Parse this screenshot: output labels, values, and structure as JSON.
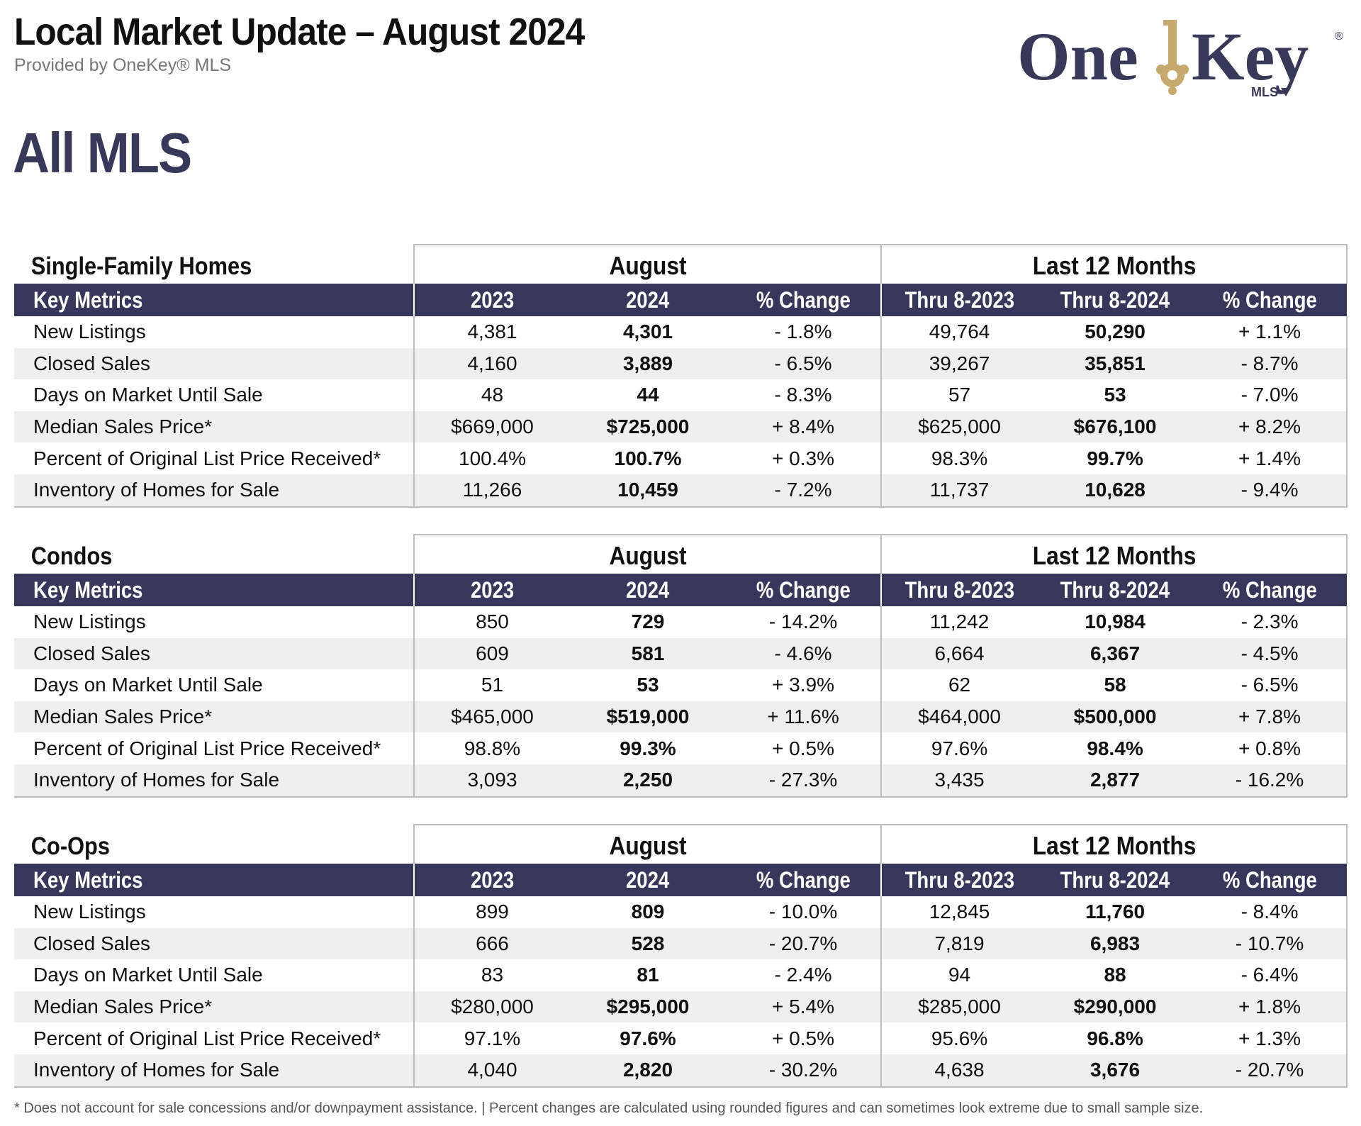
{
  "header": {
    "title": "Local Market Update – August 2024",
    "subtitle": "Provided by OneKey® MLS",
    "region": "All MLS",
    "logo_text_one": "One",
    "logo_text_key": "Key",
    "logo_text_mls": "MLS",
    "logo_registered": "®"
  },
  "colors": {
    "header_bar": "#37375b",
    "region_title": "#383858",
    "logo_text": "#383858",
    "logo_key_gold": "#c6a96c",
    "alt_row": "#efefef"
  },
  "columns": {
    "key_metrics": "Key Metrics",
    "group_month": "August",
    "group_year": "Last 12 Months",
    "y2023": "2023",
    "y2024": "2024",
    "pct": "% Change",
    "thru2023": "Thru 8-2023",
    "thru2024": "Thru 8-2024"
  },
  "sections": [
    {
      "title": "Single-Family Homes",
      "rows": [
        {
          "metric": "New Listings",
          "m2023": "4,381",
          "m2024": "4,301",
          "mpct": "- 1.8%",
          "y2023": "49,764",
          "y2024": "50,290",
          "ypct": "+ 1.1%"
        },
        {
          "metric": "Closed Sales",
          "m2023": "4,160",
          "m2024": "3,889",
          "mpct": "- 6.5%",
          "y2023": "39,267",
          "y2024": "35,851",
          "ypct": "- 8.7%"
        },
        {
          "metric": "Days on Market Until Sale",
          "m2023": "48",
          "m2024": "44",
          "mpct": "- 8.3%",
          "y2023": "57",
          "y2024": "53",
          "ypct": "- 7.0%"
        },
        {
          "metric": "Median Sales Price*",
          "m2023": "$669,000",
          "m2024": "$725,000",
          "mpct": "+ 8.4%",
          "y2023": "$625,000",
          "y2024": "$676,100",
          "ypct": "+ 8.2%"
        },
        {
          "metric": "Percent of Original List Price Received*",
          "m2023": "100.4%",
          "m2024": "100.7%",
          "mpct": "+ 0.3%",
          "y2023": "98.3%",
          "y2024": "99.7%",
          "ypct": "+ 1.4%"
        },
        {
          "metric": "Inventory of Homes for Sale",
          "m2023": "11,266",
          "m2024": "10,459",
          "mpct": "- 7.2%",
          "y2023": "11,737",
          "y2024": "10,628",
          "ypct": "- 9.4%"
        }
      ]
    },
    {
      "title": "Condos",
      "rows": [
        {
          "metric": "New Listings",
          "m2023": "850",
          "m2024": "729",
          "mpct": "- 14.2%",
          "y2023": "11,242",
          "y2024": "10,984",
          "ypct": "- 2.3%"
        },
        {
          "metric": "Closed Sales",
          "m2023": "609",
          "m2024": "581",
          "mpct": "- 4.6%",
          "y2023": "6,664",
          "y2024": "6,367",
          "ypct": "- 4.5%"
        },
        {
          "metric": "Days on Market Until Sale",
          "m2023": "51",
          "m2024": "53",
          "mpct": "+ 3.9%",
          "y2023": "62",
          "y2024": "58",
          "ypct": "- 6.5%"
        },
        {
          "metric": "Median Sales Price*",
          "m2023": "$465,000",
          "m2024": "$519,000",
          "mpct": "+ 11.6%",
          "y2023": "$464,000",
          "y2024": "$500,000",
          "ypct": "+ 7.8%"
        },
        {
          "metric": "Percent of Original List Price Received*",
          "m2023": "98.8%",
          "m2024": "99.3%",
          "mpct": "+ 0.5%",
          "y2023": "97.6%",
          "y2024": "98.4%",
          "ypct": "+ 0.8%"
        },
        {
          "metric": "Inventory of Homes for Sale",
          "m2023": "3,093",
          "m2024": "2,250",
          "mpct": "- 27.3%",
          "y2023": "3,435",
          "y2024": "2,877",
          "ypct": "- 16.2%"
        }
      ]
    },
    {
      "title": "Co-Ops",
      "rows": [
        {
          "metric": "New Listings",
          "m2023": "899",
          "m2024": "809",
          "mpct": "- 10.0%",
          "y2023": "12,845",
          "y2024": "11,760",
          "ypct": "- 8.4%"
        },
        {
          "metric": "Closed Sales",
          "m2023": "666",
          "m2024": "528",
          "mpct": "- 20.7%",
          "y2023": "7,819",
          "y2024": "6,983",
          "ypct": "- 10.7%"
        },
        {
          "metric": "Days on Market Until Sale",
          "m2023": "83",
          "m2024": "81",
          "mpct": "- 2.4%",
          "y2023": "94",
          "y2024": "88",
          "ypct": "- 6.4%"
        },
        {
          "metric": "Median Sales Price*",
          "m2023": "$280,000",
          "m2024": "$295,000",
          "mpct": "+ 5.4%",
          "y2023": "$285,000",
          "y2024": "$290,000",
          "ypct": "+ 1.8%"
        },
        {
          "metric": "Percent of Original List Price Received*",
          "m2023": "97.1%",
          "m2024": "97.6%",
          "mpct": "+ 0.5%",
          "y2023": "95.6%",
          "y2024": "96.8%",
          "ypct": "+ 1.3%"
        },
        {
          "metric": "Inventory of Homes for Sale",
          "m2023": "4,040",
          "m2024": "2,820",
          "mpct": "- 30.2%",
          "y2023": "4,638",
          "y2024": "3,676",
          "ypct": "- 20.7%"
        }
      ]
    }
  ],
  "footnote": "* Does not account for sale concessions and/or downpayment assistance. | Percent changes are calculated using rounded figures and can sometimes look extreme due to small sample size."
}
